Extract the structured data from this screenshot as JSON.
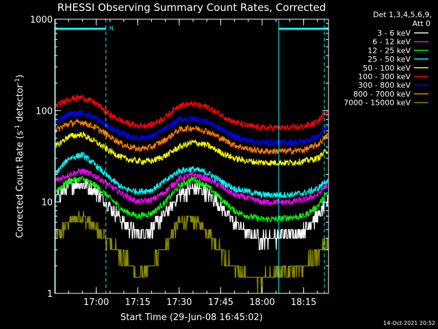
{
  "chart_data": {
    "type": "line",
    "title": "RHESSI Observing Summary Count Rates, Corrected",
    "xlabel": "Start Time (29-Jun-08 16:45:02)",
    "ylabel": "Corrected Count Rate (s⁻¹ detector⁻¹)",
    "ylabel_parts": [
      "Corrected Count Rate (s",
      "-1",
      " detector",
      "-1",
      ")"
    ],
    "yscale": "log",
    "ylim": [
      1,
      1000
    ],
    "xlim_minutes": [
      0,
      99
    ],
    "x_ticks": [
      {
        "label": "17:00",
        "minute": 15
      },
      {
        "label": "17:15",
        "minute": 30
      },
      {
        "label": "17:30",
        "minute": 45
      },
      {
        "label": "17:45",
        "minute": 60
      },
      {
        "label": "18:00",
        "minute": 75
      },
      {
        "label": "18:15",
        "minute": 90
      }
    ],
    "y_ticks": [
      {
        "label": "1",
        "value": 1
      },
      {
        "label": "10",
        "value": 10
      },
      {
        "label": "100",
        "value": 100
      },
      {
        "label": "1000",
        "value": 1000
      }
    ],
    "legend_header": [
      "Det 1,3,4,5,6,9,",
      "Att 0"
    ],
    "legend_placement": "right",
    "timestamp": "14-Oct-2021 20:52",
    "annotations": [
      {
        "text": "N",
        "minute": 18.5
      }
    ],
    "markers": {
      "night_bars": [
        [
          0,
          18.5
        ],
        [
          81,
          99
        ]
      ],
      "solid_verticals": [
        0,
        81
      ],
      "dashed_verticals": [
        18.5,
        97.5
      ],
      "color": "#00ffff"
    },
    "time_minutes": [
      0,
      5,
      10,
      15,
      20,
      25,
      30,
      35,
      40,
      45,
      50,
      55,
      60,
      65,
      70,
      75,
      80,
      85,
      90,
      95,
      99
    ],
    "series": [
      {
        "name": "3 - 6 keV",
        "color": "#ffffff",
        "values": [
          11,
          15,
          16,
          13,
          9,
          6,
          4.5,
          5,
          7.5,
          12,
          14,
          13,
          9,
          6,
          4.5,
          4,
          4.2,
          4.5,
          5,
          7,
          10
        ]
      },
      {
        "name": "6 - 12 keV",
        "color": "#ff00ff",
        "values": [
          17,
          20,
          22,
          19,
          15,
          12,
          10,
          10.5,
          13,
          18,
          20,
          18,
          15,
          12,
          11,
          10,
          10,
          10,
          10.5,
          12,
          16
        ]
      },
      {
        "name": "12 - 25 keV",
        "color": "#00ff00",
        "values": [
          13,
          17,
          18,
          15,
          11,
          8,
          7,
          7.5,
          10,
          15,
          18,
          15,
          11,
          8,
          7,
          6.5,
          6.5,
          6.8,
          7,
          9,
          13
        ]
      },
      {
        "name": "25 - 50 keV",
        "color": "#00ffff",
        "values": [
          20,
          30,
          33,
          25,
          18,
          14,
          13,
          13.5,
          17,
          22,
          23,
          21,
          17,
          14,
          13,
          12,
          12,
          12,
          12.5,
          14,
          18
        ]
      },
      {
        "name": "50 - 100 keV",
        "color": "#ffff00",
        "values": [
          40,
          52,
          55,
          45,
          36,
          30,
          28,
          28,
          32,
          40,
          45,
          42,
          35,
          30,
          28,
          27,
          27,
          27,
          28,
          30,
          38
        ]
      },
      {
        "name": "100 - 300 keV",
        "color": "#ff0000",
        "values": [
          110,
          135,
          140,
          120,
          90,
          75,
          68,
          70,
          85,
          115,
          118,
          110,
          90,
          75,
          68,
          65,
          65,
          65,
          67,
          75,
          105
        ]
      },
      {
        "name": "300 - 800 keV",
        "color": "#0000ff",
        "values": [
          75,
          92,
          95,
          82,
          65,
          55,
          50,
          52,
          63,
          80,
          82,
          76,
          63,
          52,
          47,
          45,
          45,
          45,
          46,
          52,
          70
        ]
      },
      {
        "name": "800 - 7000 keV",
        "color": "#ff7f00",
        "values": [
          60,
          72,
          75,
          65,
          52,
          42,
          38,
          40,
          48,
          62,
          65,
          60,
          50,
          42,
          38,
          36,
          36,
          36,
          37,
          42,
          55
        ]
      },
      {
        "name": "7000 - 15000 keV",
        "color": "#8b8b00",
        "values": [
          4,
          6,
          7,
          5,
          3.5,
          2.5,
          1.6,
          2,
          3.5,
          6,
          6.5,
          5,
          3,
          1.8,
          1.5,
          1.5,
          1.6,
          1.8,
          2,
          2.5,
          4
        ]
      }
    ]
  }
}
